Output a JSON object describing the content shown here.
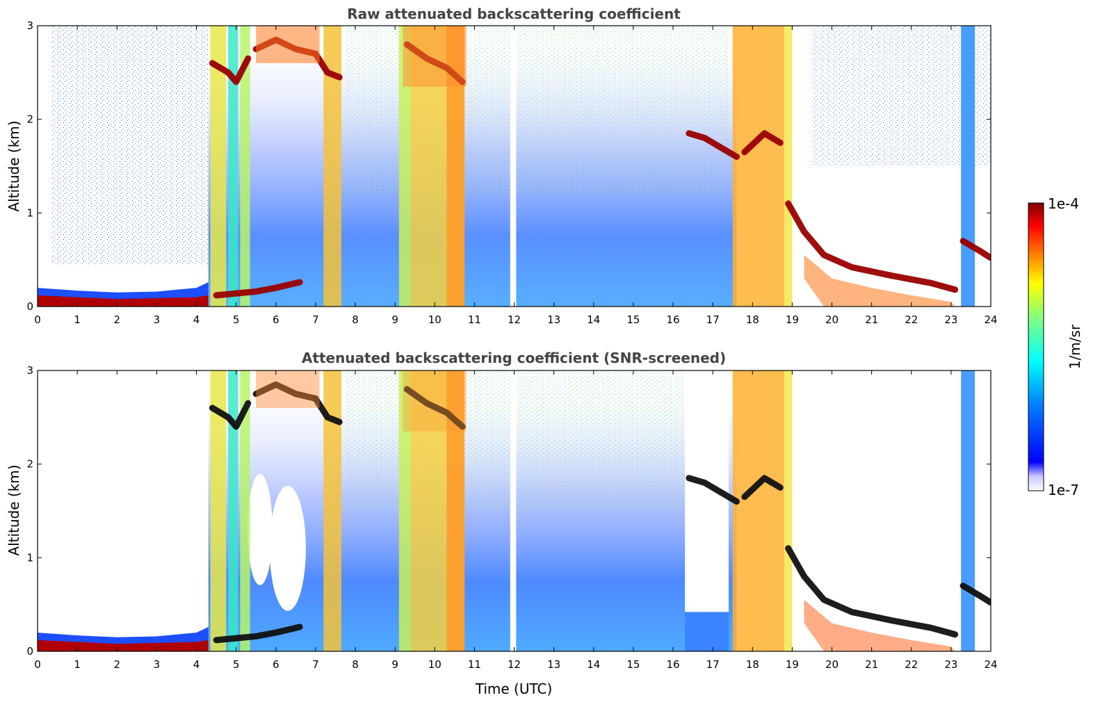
{
  "colors": {
    "jet": [
      "#ffffff",
      "#00008f",
      "#0000ff",
      "#0080ff",
      "#00ffff",
      "#80ff80",
      "#ffff00",
      "#ff8000",
      "#ff0000",
      "#800000"
    ]
  },
  "chart_data": [
    {
      "type": "heatmap",
      "title": "Raw attenuated backscattering coefficient",
      "xlabel": "",
      "ylabel": "Altitude (km)",
      "xlim": [
        0,
        24
      ],
      "ylim": [
        0,
        3
      ],
      "xticks": [
        "0",
        "1",
        "2",
        "3",
        "4",
        "5",
        "6",
        "7",
        "8",
        "9",
        "10",
        "11",
        "12",
        "13",
        "14",
        "15",
        "16",
        "17",
        "18",
        "19",
        "20",
        "21",
        "22",
        "23",
        "24"
      ],
      "yticks": [
        "0",
        "1",
        "2",
        "3"
      ],
      "data_gaps_utc": [
        [
          11.9,
          12.05
        ]
      ],
      "boundary_layer_top_km": [
        {
          "x": 0,
          "y": 0.12
        },
        {
          "x": 2,
          "y": 0.08
        },
        {
          "x": 4,
          "y": 0.1
        },
        {
          "x": 5.5,
          "y": 0.18
        },
        {
          "x": 6.6,
          "y": 0.25
        },
        {
          "x": 18.9,
          "y": 1.1
        },
        {
          "x": 19.5,
          "y": 0.7
        },
        {
          "x": 20,
          "y": 0.45
        },
        {
          "x": 21,
          "y": 0.35
        },
        {
          "x": 22,
          "y": 0.25
        },
        {
          "x": 23,
          "y": 0.15
        },
        {
          "x": 23.3,
          "y": 0.75
        },
        {
          "x": 24,
          "y": 0.55
        }
      ],
      "cloud_layers_km": [
        {
          "x": 4.5,
          "y": 2.6
        },
        {
          "x": 5,
          "y": 2.45
        },
        {
          "x": 5.3,
          "y": 2.6
        },
        {
          "x": 6,
          "y": 2.8
        },
        {
          "x": 7,
          "y": 2.7
        },
        {
          "x": 7.5,
          "y": 2.5
        },
        {
          "x": 9.5,
          "y": 2.7
        },
        {
          "x": 10.5,
          "y": 2.45
        },
        {
          "x": 16.5,
          "y": 1.85
        },
        {
          "x": 17.5,
          "y": 1.6
        },
        {
          "x": 18.5,
          "y": 1.8
        }
      ]
    },
    {
      "type": "heatmap",
      "title": "Attenuated backscattering coefficient (SNR-screened)",
      "xlabel": "Time (UTC)",
      "ylabel": "Altitude (km)",
      "xlim": [
        0,
        24
      ],
      "ylim": [
        0,
        3
      ],
      "xticks": [
        "0",
        "1",
        "2",
        "3",
        "4",
        "5",
        "6",
        "7",
        "8",
        "9",
        "10",
        "11",
        "12",
        "13",
        "14",
        "15",
        "16",
        "17",
        "18",
        "19",
        "20",
        "21",
        "22",
        "23",
        "24"
      ],
      "yticks": [
        "0",
        "1",
        "2",
        "3"
      ],
      "data_gaps_utc": [
        [
          11.9,
          12.05
        ]
      ],
      "snr_screened": true
    }
  ],
  "colorbar": {
    "label": "1/m/sr",
    "max_label": "1e-4",
    "min_label": "1e-7",
    "scale": "log",
    "range": [
      1e-07,
      0.0001
    ]
  }
}
